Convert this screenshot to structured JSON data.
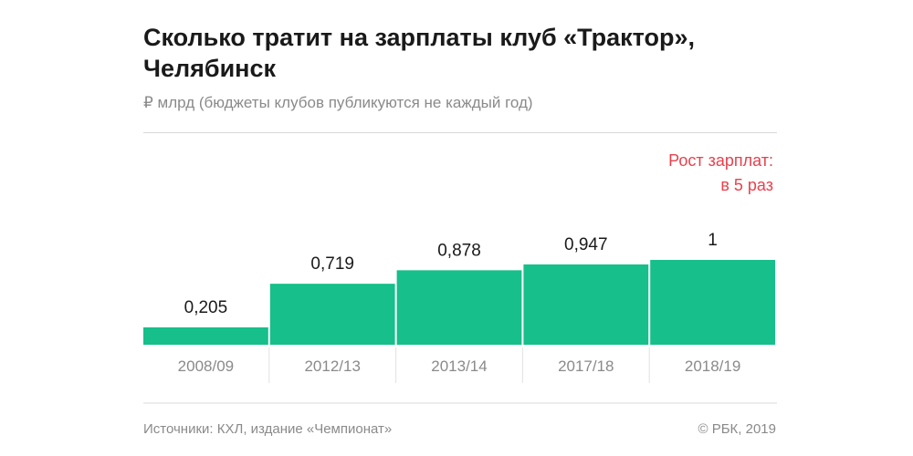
{
  "chart_data": {
    "type": "bar",
    "title": "Сколько тратит на зарплаты клуб «Трактор», Челябинск",
    "subtitle": "₽ млрд (бюджеты клубов публикуются не каждый год)",
    "categories": [
      "2008/09",
      "2012/13",
      "2013/14",
      "2017/18",
      "2018/19"
    ],
    "values": [
      0.205,
      0.719,
      0.878,
      0.947,
      1
    ],
    "value_labels": [
      "0,205",
      "0,719",
      "0,878",
      "0,947",
      "1"
    ],
    "annotation": [
      "Рост зарплат:",
      "в 5 раз"
    ],
    "ylim": [
      0,
      1
    ],
    "grid": false,
    "colors": {
      "bar": "#17bf8a",
      "annotation": "#e8414d"
    }
  },
  "footer": {
    "source": "Источники: КХЛ, издание «Чемпионат»",
    "copyright": "© РБК, 2019"
  }
}
